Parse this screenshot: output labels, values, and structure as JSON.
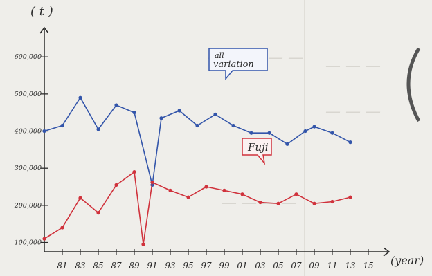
{
  "chart_data": {
    "type": "line",
    "ylabel": "( t )",
    "xlabel": "(year)",
    "ylim": [
      60000,
      660000
    ],
    "y_ticks": [
      {
        "value": 100000,
        "label": "100,000"
      },
      {
        "value": 200000,
        "label": "200,000"
      },
      {
        "value": 300000,
        "label": "300,000"
      },
      {
        "value": 400000,
        "label": "400,000"
      },
      {
        "value": 500000,
        "label": "500,000"
      },
      {
        "value": 600000,
        "label": "600,000"
      }
    ],
    "x": [
      1979,
      1980,
      1981,
      1982,
      1983,
      1984,
      1985,
      1986,
      1987,
      1988,
      1989,
      1990,
      1991,
      1992,
      1993,
      1994,
      1995,
      1996,
      1997,
      1998,
      1999,
      2000,
      2001,
      2002,
      2003,
      2004,
      2005,
      2006,
      2007,
      2008,
      2009,
      2010,
      2011,
      2012,
      2013,
      2014,
      2015,
      2016
    ],
    "x_ticks": [
      {
        "value": 1981,
        "label": "81"
      },
      {
        "value": 1983,
        "label": "83"
      },
      {
        "value": 1985,
        "label": "85"
      },
      {
        "value": 1987,
        "label": "87"
      },
      {
        "value": 1989,
        "label": "89"
      },
      {
        "value": 1991,
        "label": "91"
      },
      {
        "value": 1993,
        "label": "93"
      },
      {
        "value": 1995,
        "label": "95"
      },
      {
        "value": 1997,
        "label": "97"
      },
      {
        "value": 1999,
        "label": "99"
      },
      {
        "value": 2001,
        "label": "01"
      },
      {
        "value": 2003,
        "label": "03"
      },
      {
        "value": 2005,
        "label": "05"
      },
      {
        "value": 2007,
        "label": "07"
      },
      {
        "value": 2009,
        "label": "09"
      },
      {
        "value": 2011,
        "label": "11"
      },
      {
        "value": 2013,
        "label": "13"
      },
      {
        "value": 2015,
        "label": "15"
      }
    ],
    "series": [
      {
        "name": "all variation",
        "color": "#3355aa",
        "points": [
          [
            1979,
            400000
          ],
          [
            1981,
            415000
          ],
          [
            1983,
            490000
          ],
          [
            1985,
            405000
          ],
          [
            1987,
            470000
          ],
          [
            1989,
            450000
          ],
          [
            1991,
            255000
          ],
          [
            1992,
            435000
          ],
          [
            1994,
            455000
          ],
          [
            1996,
            415000
          ],
          [
            1998,
            445000
          ],
          [
            2000,
            415000
          ],
          [
            2002,
            395000
          ],
          [
            2004,
            395000
          ],
          [
            2006,
            365000
          ],
          [
            2008,
            400000
          ],
          [
            2009,
            412000
          ],
          [
            2011,
            395000
          ],
          [
            2013,
            370000
          ]
        ]
      },
      {
        "name": "Fuji",
        "color": "#d0323c",
        "points": [
          [
            1979,
            110000
          ],
          [
            1981,
            140000
          ],
          [
            1983,
            220000
          ],
          [
            1985,
            180000
          ],
          [
            1987,
            255000
          ],
          [
            1989,
            290000
          ],
          [
            1990,
            95000
          ],
          [
            1991,
            262000
          ],
          [
            1993,
            240000
          ],
          [
            1995,
            222000
          ],
          [
            1997,
            250000
          ],
          [
            1999,
            240000
          ],
          [
            2001,
            230000
          ],
          [
            2003,
            208000
          ],
          [
            2005,
            205000
          ],
          [
            2007,
            230000
          ],
          [
            2009,
            205000
          ],
          [
            2011,
            210000
          ],
          [
            2013,
            222000
          ]
        ]
      }
    ]
  },
  "callouts": {
    "blue": {
      "line1": "all",
      "line2": "variation",
      "color": "#3355aa"
    },
    "red": {
      "text": "Fuji",
      "color": "#d0323c"
    }
  }
}
